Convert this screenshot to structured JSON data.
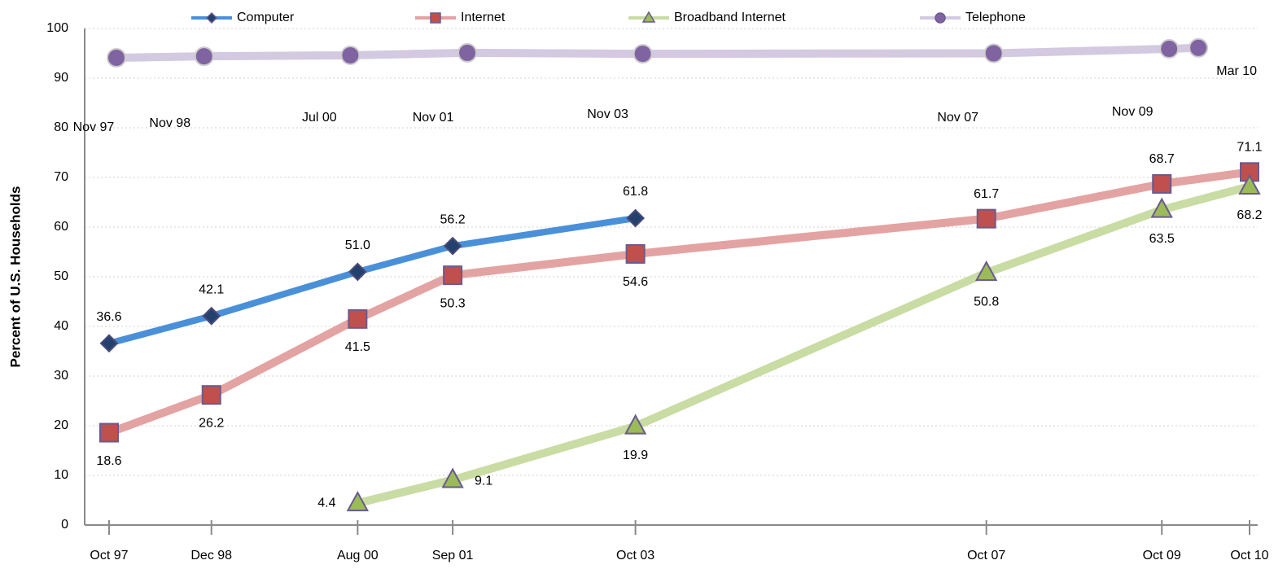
{
  "chart_data": {
    "type": "line",
    "ylabel": "Percent of U.S. Households",
    "categories": [
      "Oct 97",
      "Dec 98",
      "Aug 00",
      "Sep 01",
      "Oct 03",
      "Oct 07",
      "Oct 09",
      "Oct 10"
    ],
    "ylim": [
      0,
      100
    ],
    "yticks": [
      0,
      10,
      20,
      30,
      40,
      50,
      60,
      70,
      80,
      90,
      100
    ],
    "grid": true,
    "legend": "top",
    "series": [
      {
        "name": "Computer",
        "color": "#4a90d9",
        "marker": "diamond",
        "marker_color": "#24416e",
        "x": [
          "Oct 97",
          "Dec 98",
          "Aug 00",
          "Sep 01",
          "Oct 03"
        ],
        "values": [
          36.6,
          42.1,
          51,
          56.2,
          61.8
        ],
        "value_labels": [
          "36.6",
          "42.1",
          "51.0",
          "56.2",
          "61.8"
        ]
      },
      {
        "name": "Internet",
        "color": "#e3a3a2",
        "marker": "square",
        "marker_color": "#c0504d",
        "x": [
          "Oct 97",
          "Dec 98",
          "Aug 00",
          "Sep 01",
          "Oct 03",
          "Oct 07",
          "Oct 09",
          "Oct 10"
        ],
        "values": [
          18.6,
          26.2,
          41.5,
          50.3,
          54.6,
          61.7,
          68.7,
          71.1
        ],
        "value_labels": [
          "18.6",
          "26.2",
          "41.5",
          "50.3",
          "54.6",
          "61.7",
          "68.7",
          "71.1"
        ]
      },
      {
        "name": "Broadband Internet",
        "color": "#c8dca3",
        "marker": "triangle",
        "marker_color": "#9bbb59",
        "x": [
          "Aug 00",
          "Sep 01",
          "Oct 03",
          "Oct 07",
          "Oct 09",
          "Oct 10"
        ],
        "values": [
          4.4,
          9.1,
          19.9,
          50.8,
          63.5,
          68.2
        ],
        "value_labels": [
          "4.4",
          "9.1",
          "19.9",
          "50.8",
          "63.5",
          "68.2"
        ]
      },
      {
        "name": "Telephone",
        "color": "#d3c9e0",
        "marker": "circle",
        "marker_color": "#8064a2",
        "x": [
          "Nov 97",
          "Nov 98",
          "Jul 00",
          "Nov 01",
          "Nov 03",
          "Nov 07",
          "Nov 09",
          "Mar 10"
        ],
        "values": [
          94.1,
          94.4,
          94.6,
          95.1,
          94.9,
          95.0,
          95.9,
          96.1
        ]
      }
    ]
  }
}
